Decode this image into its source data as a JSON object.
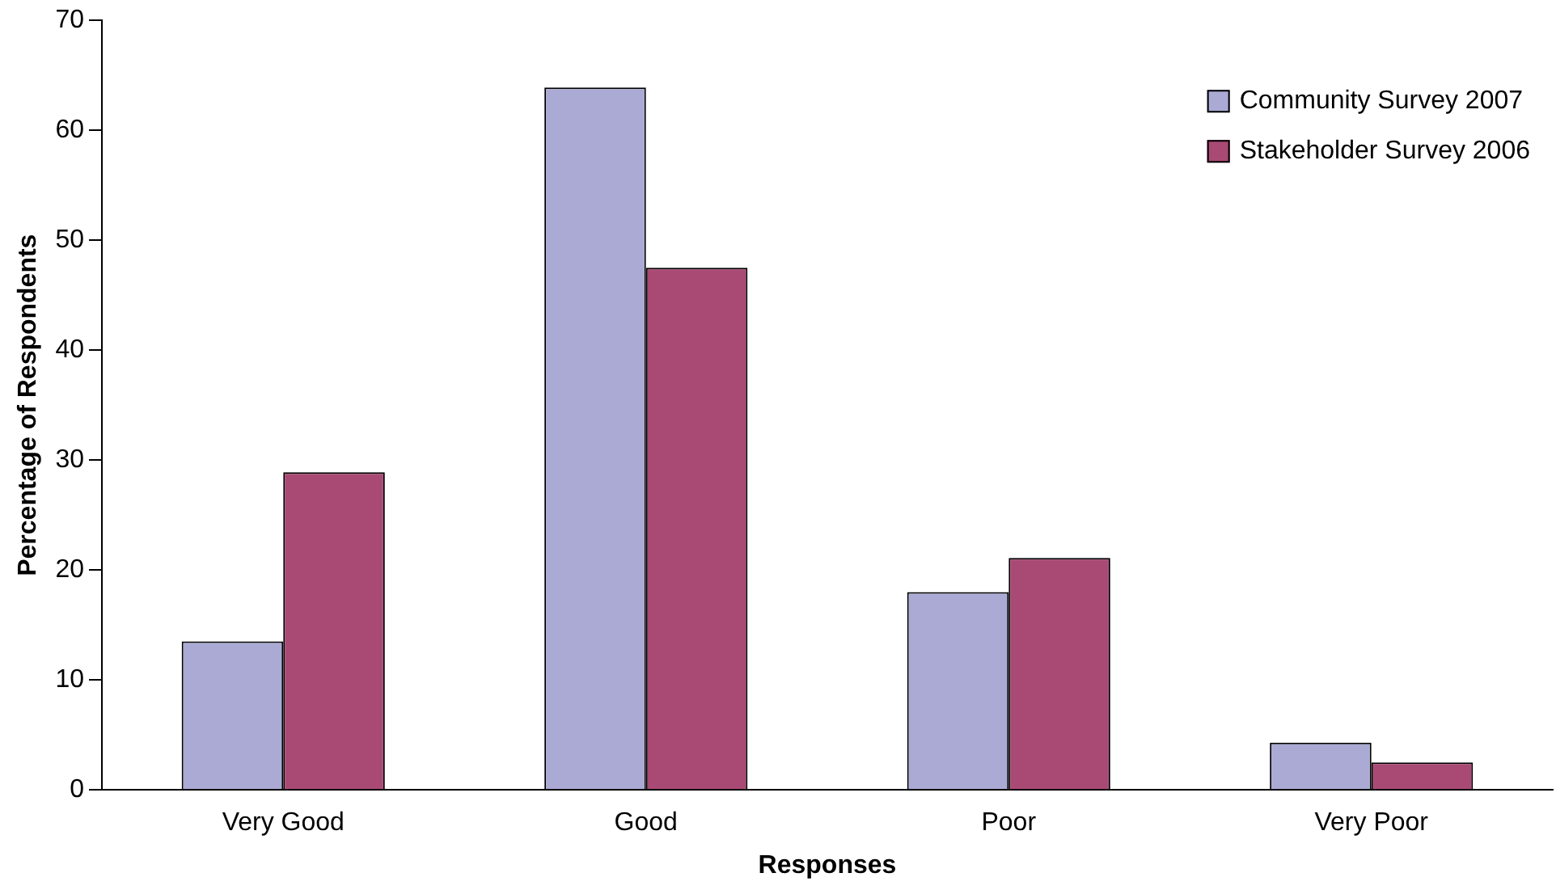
{
  "chart_data": {
    "type": "bar",
    "xlabel": "Responses",
    "ylabel": "Percentage of Respondents",
    "categories": [
      "Very Good",
      "Good",
      "Poor",
      "Very Poor"
    ],
    "series": [
      {
        "name": "Community Survey 2007",
        "color": "#aaaad5",
        "values": [
          13.5,
          63.9,
          18,
          4.3
        ]
      },
      {
        "name": "Stakeholder Survey 2006",
        "color": "#a94a75",
        "values": [
          28.9,
          47.5,
          21.1,
          2.5
        ]
      }
    ],
    "ylim": [
      0,
      70
    ],
    "yticks": [
      0,
      10,
      20,
      30,
      40,
      50,
      60,
      70
    ],
    "grid": false,
    "legend": "top right"
  }
}
